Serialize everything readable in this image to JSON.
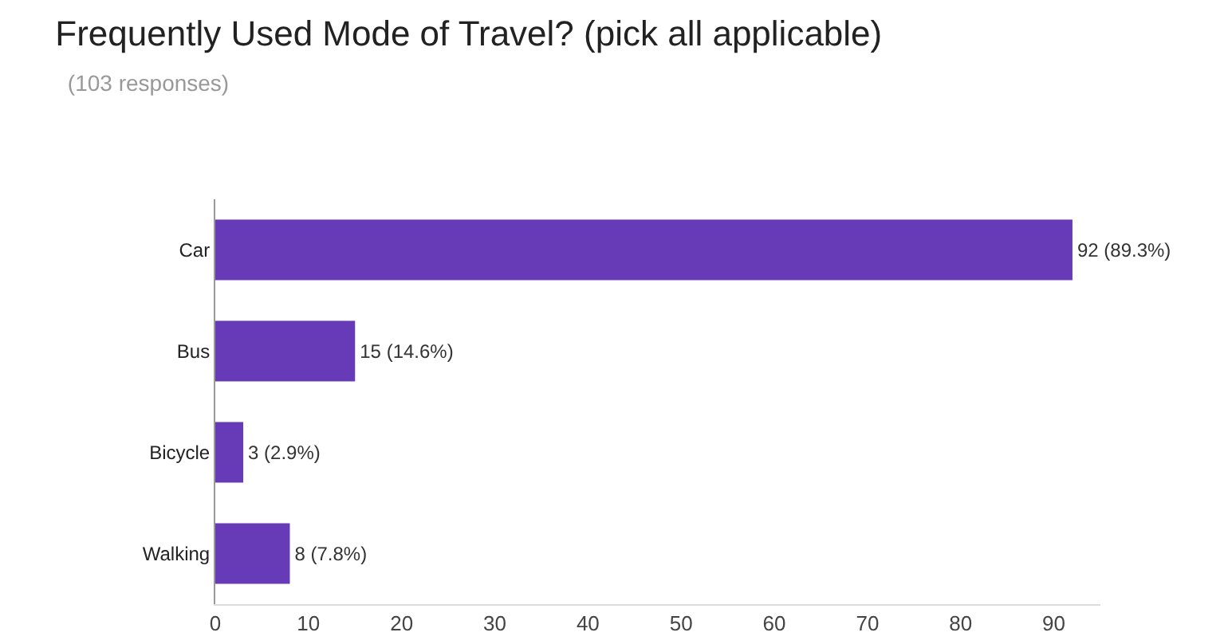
{
  "chart_data": {
    "type": "bar",
    "title": "Frequently Used Mode of Travel? (pick all applicable)",
    "subtitle": "(103 responses)",
    "orientation": "horizontal",
    "categories": [
      "Car",
      "Bus",
      "Bicycle",
      "Walking"
    ],
    "values": [
      92,
      15,
      3,
      8
    ],
    "color": "#673ab7",
    "value_labels": [
      "92 (89.3%)",
      "15 (14.6%)",
      "3 (2.9%)",
      "8 (7.8%)"
    ],
    "xlim": [
      0,
      95
    ],
    "xticks": [
      0,
      10,
      20,
      30,
      40,
      50,
      60,
      70,
      80,
      90
    ],
    "grid": false,
    "legend": false
  }
}
